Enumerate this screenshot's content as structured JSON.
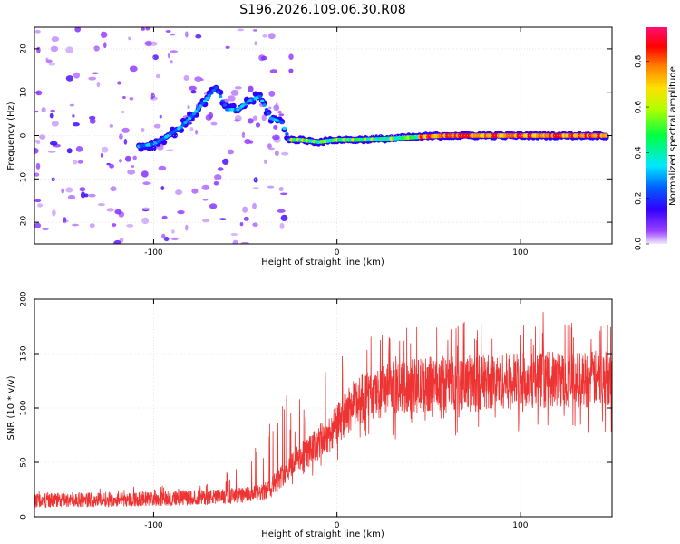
{
  "title": "S196.2026.109.06.30.R08",
  "chart_data": [
    {
      "type": "heatmap",
      "name": "spectrogram",
      "xlabel": "Height of straight line (km)",
      "ylabel": "Frequency (Hz)",
      "xlim": [
        -165,
        150
      ],
      "ylim": [
        -25,
        25
      ],
      "xticks": [
        -100,
        0,
        100
      ],
      "yticks": [
        -20,
        -10,
        0,
        10,
        20
      ],
      "colorbar": {
        "label": "Normalized spectral amplitude",
        "range": [
          0.0,
          0.95
        ],
        "ticks": [
          0.0,
          0.2,
          0.4,
          0.6,
          0.8
        ],
        "tick_labels": [
          "0.0",
          "0.2",
          "0.4",
          "0.6",
          "0.8"
        ],
        "colormap": [
          "#e8e0f8",
          "#7a00ff",
          "#0000ff",
          "#00e0ff",
          "#00ff00",
          "#ffff00",
          "#ff8000",
          "#ff0000",
          "#ff0080"
        ]
      },
      "signal_track": [
        {
          "x": -108,
          "y": -2.5
        },
        {
          "x": -100,
          "y": -2
        },
        {
          "x": -92,
          "y": 0
        },
        {
          "x": -85,
          "y": 2
        },
        {
          "x": -78,
          "y": 5
        },
        {
          "x": -72,
          "y": 8
        },
        {
          "x": -66,
          "y": 11
        },
        {
          "x": -60,
          "y": 6
        },
        {
          "x": -54,
          "y": 6
        },
        {
          "x": -48,
          "y": 8
        },
        {
          "x": -42,
          "y": 9
        },
        {
          "x": -36,
          "y": 4
        },
        {
          "x": -30,
          "y": 3
        },
        {
          "x": -26,
          "y": -1
        },
        {
          "x": -20,
          "y": -1
        },
        {
          "x": -10,
          "y": -1.5
        },
        {
          "x": 0,
          "y": -1
        },
        {
          "x": 10,
          "y": -1
        },
        {
          "x": 25,
          "y": -0.8
        },
        {
          "x": 45,
          "y": -0.3
        },
        {
          "x": 60,
          "y": 0
        },
        {
          "x": 80,
          "y": 0
        },
        {
          "x": 100,
          "y": 0
        },
        {
          "x": 120,
          "y": 0
        },
        {
          "x": 148,
          "y": 0
        }
      ]
    },
    {
      "type": "line",
      "name": "snr",
      "xlabel": "Height of straight line (km)",
      "ylabel": "SNR (10 * v/v)",
      "xlim": [
        -165,
        150
      ],
      "ylim": [
        0,
        200
      ],
      "xticks": [
        -100,
        0,
        100
      ],
      "yticks": [
        0,
        50,
        100,
        150,
        200
      ],
      "color": "#ee3333",
      "series": [
        {
          "name": "SNR",
          "x": [
            -165,
            -150,
            -130,
            -110,
            -90,
            -70,
            -50,
            -40,
            -35,
            -30,
            -25,
            -20,
            -15,
            -10,
            -5,
            0,
            5,
            10,
            15,
            20,
            25,
            30,
            40,
            50,
            60,
            70,
            80,
            90,
            100,
            110,
            120,
            130,
            140,
            150
          ],
          "y": [
            15,
            15,
            16,
            16,
            17,
            18,
            20,
            22,
            30,
            38,
            48,
            55,
            60,
            68,
            75,
            85,
            95,
            105,
            110,
            112,
            115,
            118,
            120,
            122,
            123,
            124,
            124,
            125,
            125,
            126,
            126,
            126,
            127,
            128
          ],
          "spike_peak": [
            25,
            25,
            28,
            28,
            30,
            35,
            48,
            80,
            110,
            125,
            100,
            110,
            120,
            130,
            145,
            150,
            155,
            160,
            165,
            170,
            170,
            172,
            175,
            178,
            180,
            182,
            180,
            183,
            185,
            190,
            188,
            190,
            192,
            185
          ]
        }
      ]
    }
  ]
}
